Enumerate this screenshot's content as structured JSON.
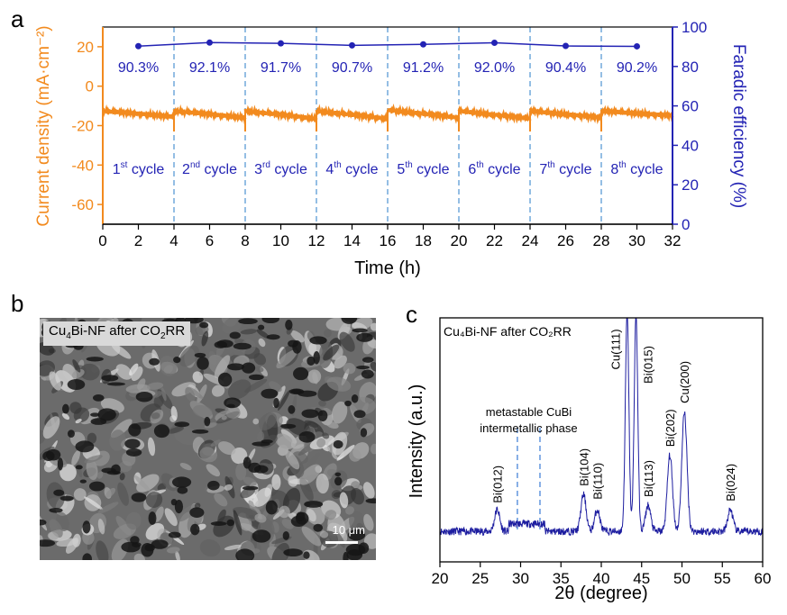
{
  "panel_letters": [
    "a",
    "b",
    "c"
  ],
  "chart_data": [
    {
      "type": "line",
      "panel": "a",
      "xlabel": "Time (h)",
      "ylabel": "Current density (mA·cm⁻²)",
      "ylabel2": "Faradic efficiency (%)",
      "xlim": [
        0,
        32
      ],
      "ylim": [
        -70,
        30
      ],
      "ylim2": [
        0,
        100
      ],
      "x_ticks": [
        0,
        2,
        4,
        6,
        8,
        10,
        12,
        14,
        16,
        18,
        20,
        22,
        24,
        26,
        28,
        30,
        32
      ],
      "y_ticks": [
        20,
        0,
        -20,
        -40,
        -60
      ],
      "y2_ticks": [
        0,
        20,
        40,
        60,
        80,
        100
      ],
      "colors": {
        "current": "#f28a1e",
        "fe": "#2323b4",
        "divider": "#5b9bd5"
      },
      "cycle_boundaries": [
        4,
        8,
        12,
        16,
        20,
        24,
        28
      ],
      "cycle_labels": [
        {
          "num": "1",
          "sup": "st",
          "text": " cycle"
        },
        {
          "num": "2",
          "sup": "nd",
          "text": " cycle"
        },
        {
          "num": "3",
          "sup": "rd",
          "text": " cycle"
        },
        {
          "num": "4",
          "sup": "th",
          "text": " cycle"
        },
        {
          "num": "5",
          "sup": "th",
          "text": " cycle"
        },
        {
          "num": "6",
          "sup": "th",
          "text": " cycle"
        },
        {
          "num": "7",
          "sup": "th",
          "text": " cycle"
        },
        {
          "num": "8",
          "sup": "th",
          "text": " cycle"
        }
      ],
      "series": [
        {
          "name": "Faradic efficiency",
          "axis": "right",
          "x": [
            2,
            6,
            10,
            14,
            18,
            22,
            26,
            30
          ],
          "y": [
            90.3,
            92.1,
            91.7,
            90.7,
            91.2,
            92.0,
            90.4,
            90.2
          ],
          "labels": [
            "90.3%",
            "92.1%",
            "91.7%",
            "90.7%",
            "91.2%",
            "92.0%",
            "90.4%",
            "90.2%"
          ]
        },
        {
          "axis": "left",
          "per_cycle_start": [
            -12.5,
            -12.5,
            -12.5,
            -12.5,
            -12.0,
            -12.5,
            -12.5,
            -12.5
          ],
          "per_cycle_end": [
            -15.5,
            -16.0,
            -16.5,
            -16.5,
            -16.0,
            -16.5,
            -16.0,
            -15.0
          ]
        }
      ]
    },
    {
      "type": "line",
      "panel": "c",
      "annotation_title": "Cu₄Bi-NF after CO₂RR",
      "xlabel": "2θ (degree)",
      "ylabel": "Intensity (a.u.)",
      "xlim": [
        20,
        60
      ],
      "x_ticks": [
        20,
        25,
        30,
        35,
        40,
        45,
        50,
        55,
        60
      ],
      "color": "#1e1ea0",
      "dashed_markers": [
        29.6,
        32.4
      ],
      "region_label": [
        "metastable CuBi",
        "intermetallic phase"
      ],
      "peaks": [
        {
          "x": 27.1,
          "label": "Bi(012)",
          "height": 0.1
        },
        {
          "x": 37.8,
          "label": "Bi(104)",
          "height": 0.17
        },
        {
          "x": 39.5,
          "label": "Bi(110)",
          "height": 0.1
        },
        {
          "x": 43.2,
          "label": "Cu(111)",
          "height": 1.0
        },
        {
          "x": 44.3,
          "label": "Bi(015)",
          "height": 1.0
        },
        {
          "x": 45.8,
          "label": "Bi(113)",
          "height": 0.12
        },
        {
          "x": 48.5,
          "label": "Bi(202)",
          "height": 0.35
        },
        {
          "x": 50.3,
          "label": "Cu(200)",
          "height": 0.55
        },
        {
          "x": 56.0,
          "label": "Bi(024)",
          "height": 0.1
        }
      ]
    }
  ],
  "sem_image": {
    "label_main": "Cu",
    "label_sub1": "4",
    "label_mid": "Bi-NF after CO",
    "label_sub2": "2",
    "label_end": "RR",
    "scale_text": "10 μm"
  }
}
